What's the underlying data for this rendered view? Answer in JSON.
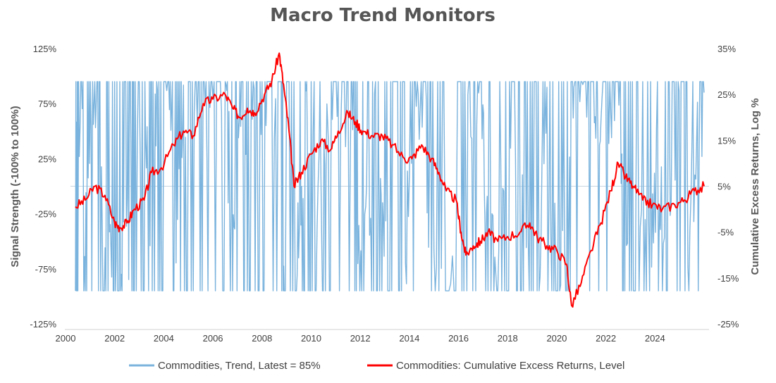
{
  "chart_data": {
    "type": "line",
    "title": "Macro Trend Monitors",
    "xlabel": "",
    "ylabel_left": "Signal Strength (-100% to 100%)",
    "ylabel_right": "Cumulative Excess Returns, Log %",
    "x_ticks": [
      "2000",
      "2002",
      "2004",
      "2006",
      "2008",
      "2010",
      "2012",
      "2014",
      "2016",
      "2018",
      "2020",
      "2022",
      "2024"
    ],
    "x_range": [
      2000,
      2026
    ],
    "y_left_ticks": [
      "125%",
      "75%",
      "25%",
      "-25%",
      "-75%",
      "-125%"
    ],
    "y_left_range": [
      -125,
      125
    ],
    "y_right_ticks": [
      "35%",
      "25%",
      "15%",
      "5%",
      "-5%",
      "-15%",
      "-25%"
    ],
    "y_right_range": [
      -25,
      35
    ],
    "grid": false,
    "legend_position": "bottom",
    "colors": {
      "trend": "#7ab3dd",
      "returns": "#ff0000",
      "zero_line": "#c8d6e2"
    },
    "series": [
      {
        "name": "Commodities, Trend, Latest = 85%",
        "axis": "left",
        "note_latest": 85,
        "values_approx": [
          [
            2000.2,
            0
          ],
          [
            2000.3,
            95
          ],
          [
            2000.6,
            -40
          ],
          [
            2000.9,
            95
          ],
          [
            2001.2,
            20
          ],
          [
            2001.5,
            -80
          ],
          [
            2001.8,
            -95
          ],
          [
            2002.1,
            -90
          ],
          [
            2002.4,
            -40
          ],
          [
            2002.6,
            95
          ],
          [
            2003.0,
            60
          ],
          [
            2003.3,
            -20
          ],
          [
            2003.6,
            90
          ],
          [
            2004.0,
            95
          ],
          [
            2004.3,
            -30
          ],
          [
            2004.6,
            80
          ],
          [
            2005.0,
            95
          ],
          [
            2005.4,
            20
          ],
          [
            2005.8,
            95
          ],
          [
            2006.3,
            95
          ],
          [
            2006.6,
            -70
          ],
          [
            2006.9,
            80
          ],
          [
            2007.2,
            10
          ],
          [
            2007.6,
            95
          ],
          [
            2008.0,
            95
          ],
          [
            2008.5,
            95
          ],
          [
            2008.7,
            -95
          ],
          [
            2009.2,
            -90
          ],
          [
            2009.5,
            50
          ],
          [
            2009.8,
            95
          ],
          [
            2010.2,
            -30
          ],
          [
            2010.5,
            90
          ],
          [
            2010.9,
            95
          ],
          [
            2011.4,
            95
          ],
          [
            2011.7,
            -95
          ],
          [
            2012.1,
            -40
          ],
          [
            2012.5,
            60
          ],
          [
            2012.8,
            -90
          ],
          [
            2013.2,
            -95
          ],
          [
            2013.6,
            -60
          ],
          [
            2014.0,
            50
          ],
          [
            2014.4,
            70
          ],
          [
            2014.7,
            -95
          ],
          [
            2015.2,
            -95
          ],
          [
            2015.9,
            -95
          ],
          [
            2016.3,
            95
          ],
          [
            2016.7,
            95
          ],
          [
            2017.0,
            -30
          ],
          [
            2017.4,
            -80
          ],
          [
            2017.8,
            95
          ],
          [
            2018.2,
            80
          ],
          [
            2018.6,
            -70
          ],
          [
            2019.0,
            -95
          ],
          [
            2019.4,
            40
          ],
          [
            2019.8,
            -90
          ],
          [
            2020.2,
            -95
          ],
          [
            2020.5,
            95
          ],
          [
            2020.9,
            95
          ],
          [
            2021.3,
            95
          ],
          [
            2021.6,
            95
          ],
          [
            2022.0,
            95
          ],
          [
            2022.3,
            60
          ],
          [
            2022.6,
            -95
          ],
          [
            2023.0,
            -60
          ],
          [
            2023.5,
            -95
          ],
          [
            2023.9,
            30
          ],
          [
            2024.3,
            -80
          ],
          [
            2024.7,
            60
          ],
          [
            2025.1,
            -90
          ],
          [
            2025.5,
            40
          ],
          [
            2025.8,
            85
          ]
        ]
      },
      {
        "name": "Commodities: Cumulative Excess Returns, Level",
        "axis": "right",
        "values_approx": [
          [
            2000.2,
            0.5
          ],
          [
            2000.6,
            2
          ],
          [
            2001.0,
            5
          ],
          [
            2001.4,
            3
          ],
          [
            2001.8,
            -3
          ],
          [
            2002.0,
            -4
          ],
          [
            2002.3,
            -3
          ],
          [
            2002.6,
            0
          ],
          [
            2003.0,
            2
          ],
          [
            2003.3,
            8
          ],
          [
            2003.7,
            9
          ],
          [
            2004.2,
            14
          ],
          [
            2004.6,
            17
          ],
          [
            2005.0,
            16
          ],
          [
            2005.4,
            23
          ],
          [
            2005.8,
            24
          ],
          [
            2006.3,
            25
          ],
          [
            2006.6,
            22
          ],
          [
            2006.9,
            20
          ],
          [
            2007.2,
            22
          ],
          [
            2007.5,
            21
          ],
          [
            2007.9,
            25
          ],
          [
            2008.2,
            28
          ],
          [
            2008.5,
            34
          ],
          [
            2008.7,
            26
          ],
          [
            2008.9,
            17
          ],
          [
            2009.1,
            5
          ],
          [
            2009.4,
            8
          ],
          [
            2009.8,
            12
          ],
          [
            2010.2,
            15
          ],
          [
            2010.6,
            13
          ],
          [
            2010.9,
            17
          ],
          [
            2011.3,
            21
          ],
          [
            2011.6,
            19
          ],
          [
            2011.9,
            17
          ],
          [
            2012.3,
            16
          ],
          [
            2012.7,
            16
          ],
          [
            2013.1,
            14
          ],
          [
            2013.6,
            11
          ],
          [
            2013.9,
            11
          ],
          [
            2014.3,
            14
          ],
          [
            2014.7,
            11
          ],
          [
            2015.0,
            8
          ],
          [
            2015.3,
            4
          ],
          [
            2015.7,
            2
          ],
          [
            2015.9,
            -5
          ],
          [
            2016.1,
            -10
          ],
          [
            2016.4,
            -8
          ],
          [
            2016.7,
            -7
          ],
          [
            2017.0,
            -5
          ],
          [
            2017.4,
            -7
          ],
          [
            2017.8,
            -6
          ],
          [
            2018.3,
            -5
          ],
          [
            2018.7,
            -3
          ],
          [
            2019.0,
            -6
          ],
          [
            2019.4,
            -8
          ],
          [
            2019.8,
            -9
          ],
          [
            2020.2,
            -12
          ],
          [
            2020.4,
            -21
          ],
          [
            2020.8,
            -16
          ],
          [
            2021.2,
            -9
          ],
          [
            2021.6,
            -3
          ],
          [
            2022.0,
            4
          ],
          [
            2022.3,
            10
          ],
          [
            2022.6,
            7
          ],
          [
            2022.9,
            5
          ],
          [
            2023.3,
            2
          ],
          [
            2023.7,
            1
          ],
          [
            2024.1,
            0
          ],
          [
            2024.6,
            1
          ],
          [
            2025.0,
            2
          ],
          [
            2025.4,
            4
          ],
          [
            2025.8,
            5
          ]
        ]
      }
    ]
  }
}
